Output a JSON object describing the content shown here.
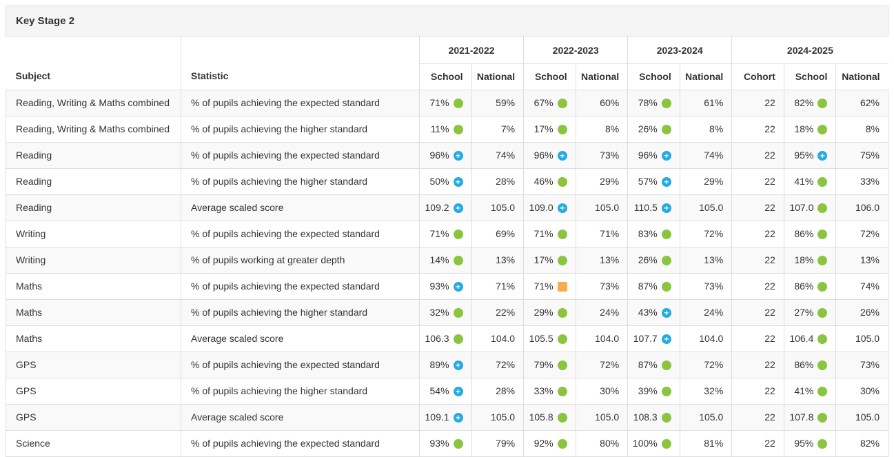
{
  "panel": {
    "title": "Key Stage 2"
  },
  "table": {
    "col_headers": {
      "subject": "Subject",
      "statistic": "Statistic"
    },
    "year_groups": [
      {
        "label": "2021-2022",
        "cols": [
          "School",
          "National"
        ]
      },
      {
        "label": "2022-2023",
        "cols": [
          "School",
          "National"
        ]
      },
      {
        "label": "2023-2024",
        "cols": [
          "School",
          "National"
        ]
      },
      {
        "label": "2024-2025",
        "cols": [
          "Cohort",
          "School",
          "National"
        ]
      }
    ],
    "icon_colors": {
      "green_circle": "#8bc53f",
      "blue_plus_circle": "#25aae1",
      "orange_square": "#f9ad4a"
    },
    "rows": [
      {
        "subject": "Reading, Writing & Maths combined",
        "statistic": "% of pupils achieving the expected standard",
        "cells": [
          {
            "v": "71%",
            "icon": "green"
          },
          {
            "v": "59%"
          },
          {
            "v": "67%",
            "icon": "green"
          },
          {
            "v": "60%"
          },
          {
            "v": "78%",
            "icon": "green"
          },
          {
            "v": "61%"
          },
          {
            "v": "22"
          },
          {
            "v": "82%",
            "icon": "green"
          },
          {
            "v": "62%"
          }
        ]
      },
      {
        "subject": "Reading, Writing & Maths combined",
        "statistic": "% of pupils achieving the higher standard",
        "cells": [
          {
            "v": "11%",
            "icon": "green"
          },
          {
            "v": "7%"
          },
          {
            "v": "17%",
            "icon": "green"
          },
          {
            "v": "8%"
          },
          {
            "v": "26%",
            "icon": "green"
          },
          {
            "v": "8%"
          },
          {
            "v": "22"
          },
          {
            "v": "18%",
            "icon": "green"
          },
          {
            "v": "8%"
          }
        ]
      },
      {
        "subject": "Reading",
        "statistic": "% of pupils achieving the expected standard",
        "cells": [
          {
            "v": "96%",
            "icon": "blue-plus"
          },
          {
            "v": "74%"
          },
          {
            "v": "96%",
            "icon": "blue-plus"
          },
          {
            "v": "73%"
          },
          {
            "v": "96%",
            "icon": "blue-plus"
          },
          {
            "v": "74%"
          },
          {
            "v": "22"
          },
          {
            "v": "95%",
            "icon": "blue-plus"
          },
          {
            "v": "75%"
          }
        ]
      },
      {
        "subject": "Reading",
        "statistic": "% of pupils achieving the higher standard",
        "cells": [
          {
            "v": "50%",
            "icon": "blue-plus"
          },
          {
            "v": "28%"
          },
          {
            "v": "46%",
            "icon": "green"
          },
          {
            "v": "29%"
          },
          {
            "v": "57%",
            "icon": "blue-plus"
          },
          {
            "v": "29%"
          },
          {
            "v": "22"
          },
          {
            "v": "41%",
            "icon": "green"
          },
          {
            "v": "33%"
          }
        ]
      },
      {
        "subject": "Reading",
        "statistic": "Average scaled score",
        "cells": [
          {
            "v": "109.2",
            "icon": "blue-plus"
          },
          {
            "v": "105.0"
          },
          {
            "v": "109.0",
            "icon": "blue-plus"
          },
          {
            "v": "105.0"
          },
          {
            "v": "110.5",
            "icon": "blue-plus"
          },
          {
            "v": "105.0"
          },
          {
            "v": "22"
          },
          {
            "v": "107.0",
            "icon": "green"
          },
          {
            "v": "106.0"
          }
        ]
      },
      {
        "subject": "Writing",
        "statistic": "% of pupils achieving the expected standard",
        "cells": [
          {
            "v": "71%",
            "icon": "green"
          },
          {
            "v": "69%"
          },
          {
            "v": "71%",
            "icon": "green"
          },
          {
            "v": "71%"
          },
          {
            "v": "83%",
            "icon": "green"
          },
          {
            "v": "72%"
          },
          {
            "v": "22"
          },
          {
            "v": "86%",
            "icon": "green"
          },
          {
            "v": "72%"
          }
        ]
      },
      {
        "subject": "Writing",
        "statistic": "% of pupils working at greater depth",
        "cells": [
          {
            "v": "14%",
            "icon": "green"
          },
          {
            "v": "13%"
          },
          {
            "v": "17%",
            "icon": "green"
          },
          {
            "v": "13%"
          },
          {
            "v": "26%",
            "icon": "green"
          },
          {
            "v": "13%"
          },
          {
            "v": "22"
          },
          {
            "v": "18%",
            "icon": "green"
          },
          {
            "v": "13%"
          }
        ]
      },
      {
        "subject": "Maths",
        "statistic": "% of pupils achieving the expected standard",
        "cells": [
          {
            "v": "93%",
            "icon": "blue-plus"
          },
          {
            "v": "71%"
          },
          {
            "v": "71%",
            "icon": "orange"
          },
          {
            "v": "73%"
          },
          {
            "v": "87%",
            "icon": "green"
          },
          {
            "v": "73%"
          },
          {
            "v": "22"
          },
          {
            "v": "86%",
            "icon": "green"
          },
          {
            "v": "74%"
          }
        ]
      },
      {
        "subject": "Maths",
        "statistic": "% of pupils achieving the higher standard",
        "cells": [
          {
            "v": "32%",
            "icon": "green"
          },
          {
            "v": "22%"
          },
          {
            "v": "29%",
            "icon": "green"
          },
          {
            "v": "24%"
          },
          {
            "v": "43%",
            "icon": "blue-plus"
          },
          {
            "v": "24%"
          },
          {
            "v": "22"
          },
          {
            "v": "27%",
            "icon": "green"
          },
          {
            "v": "26%"
          }
        ]
      },
      {
        "subject": "Maths",
        "statistic": "Average scaled score",
        "cells": [
          {
            "v": "106.3",
            "icon": "green"
          },
          {
            "v": "104.0"
          },
          {
            "v": "105.5",
            "icon": "green"
          },
          {
            "v": "104.0"
          },
          {
            "v": "107.7",
            "icon": "blue-plus"
          },
          {
            "v": "104.0"
          },
          {
            "v": "22"
          },
          {
            "v": "106.4",
            "icon": "green"
          },
          {
            "v": "105.0"
          }
        ]
      },
      {
        "subject": "GPS",
        "statistic": "% of pupils achieving the expected standard",
        "cells": [
          {
            "v": "89%",
            "icon": "blue-plus"
          },
          {
            "v": "72%"
          },
          {
            "v": "79%",
            "icon": "green"
          },
          {
            "v": "72%"
          },
          {
            "v": "87%",
            "icon": "green"
          },
          {
            "v": "72%"
          },
          {
            "v": "22"
          },
          {
            "v": "86%",
            "icon": "green"
          },
          {
            "v": "73%"
          }
        ]
      },
      {
        "subject": "GPS",
        "statistic": "% of pupils achieving the higher standard",
        "cells": [
          {
            "v": "54%",
            "icon": "blue-plus"
          },
          {
            "v": "28%"
          },
          {
            "v": "33%",
            "icon": "green"
          },
          {
            "v": "30%"
          },
          {
            "v": "39%",
            "icon": "green"
          },
          {
            "v": "32%"
          },
          {
            "v": "22"
          },
          {
            "v": "41%",
            "icon": "green"
          },
          {
            "v": "30%"
          }
        ]
      },
      {
        "subject": "GPS",
        "statistic": "Average scaled score",
        "cells": [
          {
            "v": "109.1",
            "icon": "blue-plus"
          },
          {
            "v": "105.0"
          },
          {
            "v": "105.8",
            "icon": "green"
          },
          {
            "v": "105.0"
          },
          {
            "v": "108.3",
            "icon": "green"
          },
          {
            "v": "105.0"
          },
          {
            "v": "22"
          },
          {
            "v": "107.8",
            "icon": "green"
          },
          {
            "v": "105.0"
          }
        ]
      },
      {
        "subject": "Science",
        "statistic": "% of pupils achieving the expected standard",
        "cells": [
          {
            "v": "93%",
            "icon": "green"
          },
          {
            "v": "79%"
          },
          {
            "v": "92%",
            "icon": "green"
          },
          {
            "v": "80%"
          },
          {
            "v": "100%",
            "icon": "green"
          },
          {
            "v": "81%"
          },
          {
            "v": "22"
          },
          {
            "v": "95%",
            "icon": "green"
          },
          {
            "v": "82%"
          }
        ]
      }
    ]
  }
}
